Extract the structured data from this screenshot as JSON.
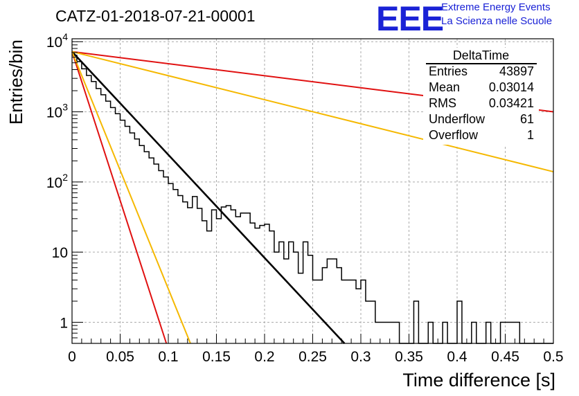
{
  "title": "CATZ-01-2018-07-21-00001",
  "logo": {
    "mark": "EEE",
    "line1": "Extreme Energy Events",
    "line2": "La Scienza nelle Scuole",
    "color": "#1a22d6"
  },
  "stats_box": {
    "title": "DeltaTime",
    "rows": [
      {
        "label": "Entries",
        "value": "43897"
      },
      {
        "label": "Mean",
        "value": "0.03014"
      },
      {
        "label": "RMS",
        "value": "0.03421"
      },
      {
        "label": "Underflow",
        "value": "61"
      },
      {
        "label": "Overflow",
        "value": "1"
      }
    ]
  },
  "chart_data": {
    "type": "line",
    "title": "CATZ-01-2018-07-21-00001",
    "xlabel": "Time difference [s]",
    "ylabel": "Entries/bin",
    "xlim": [
      0,
      0.5
    ],
    "ylim": [
      0.5,
      11000
    ],
    "y_scale": "log",
    "grid": true,
    "x_ticks": [
      "0",
      "0.05",
      "0.1",
      "0.15",
      "0.2",
      "0.25",
      "0.3",
      "0.35",
      "0.4",
      "0.45",
      "0.5"
    ],
    "y_ticks": [
      "1",
      "10",
      "10^2",
      "10^3",
      "10^4"
    ],
    "histogram": {
      "bin_width": 0.005,
      "values": [
        6400,
        5200,
        4100,
        3300,
        2700,
        2150,
        1750,
        1420,
        1150,
        940,
        760,
        620,
        500,
        410,
        330,
        270,
        220,
        180,
        145,
        118,
        95,
        78,
        64,
        52,
        43,
        62,
        42,
        28,
        20,
        40,
        30,
        44,
        46,
        40,
        32,
        36,
        36,
        26,
        22,
        24,
        25,
        20,
        10,
        14,
        8,
        14,
        10,
        5,
        14,
        9,
        4,
        4,
        6,
        8,
        8,
        6,
        4,
        4,
        4,
        3,
        4,
        2,
        2,
        1,
        1,
        1,
        1,
        1,
        0.5,
        0.5,
        0.5,
        2,
        0.5,
        0.5,
        1,
        0.5,
        0.5,
        1,
        0.5,
        0.5,
        2,
        0.5,
        0.5,
        1,
        0.5,
        0.5,
        1,
        0.5,
        0.5,
        1,
        1,
        1,
        1,
        0.5,
        0.5,
        0.5,
        0.5,
        0.5,
        0.5,
        0.5
      ]
    },
    "series": [
      {
        "color": "#000000",
        "x": [
          0,
          0.283
        ],
        "y": [
          7200,
          0.5
        ]
      },
      {
        "color": "#e01010",
        "x": [
          0,
          0.098
        ],
        "y": [
          7200,
          0.5
        ]
      },
      {
        "color": "#f5b800",
        "x": [
          0,
          0.123
        ],
        "y": [
          7200,
          0.5
        ]
      },
      {
        "color": "#e01010",
        "x": [
          0,
          0.5
        ],
        "y": [
          7200,
          1000
        ]
      },
      {
        "color": "#f5b800",
        "x": [
          0,
          0.5
        ],
        "y": [
          7200,
          140
        ]
      }
    ]
  }
}
